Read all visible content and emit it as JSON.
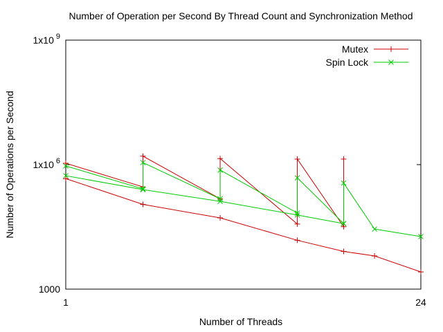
{
  "chart_data": {
    "type": "line",
    "title": "Number of Operation per Second By Thread Count and Synchronization Method",
    "x_label": "Number of Threads",
    "y_label": "Number of Operations per Second",
    "log_y": true,
    "legend": "top-right",
    "xlim": [
      1,
      24
    ],
    "xticks": [
      1,
      24
    ],
    "ylim": [
      1000,
      1000000000
    ],
    "yticks": [
      {
        "value": 1000,
        "label": "1000"
      },
      {
        "value": 1000000,
        "label": "1x10^6"
      },
      {
        "value": 1000000000,
        "label": "1x10^9"
      }
    ],
    "series": [
      {
        "name": "Mutex",
        "color": "#cc0000",
        "marker": "+",
        "x": [
          1,
          6,
          6,
          11,
          11,
          16,
          16,
          19,
          19,
          null,
          1,
          6,
          11,
          16,
          19,
          21,
          24
        ],
        "values": [
          1080000,
          290000,
          1600000,
          150000,
          1400000,
          37000,
          1360000,
          32000,
          1360000,
          null,
          460000,
          110000,
          52000,
          15000,
          8100,
          6300,
          2600
        ]
      },
      {
        "name": "Spin Lock",
        "color": "#00cc00",
        "marker": "x",
        "x": [
          1,
          6,
          6,
          11,
          11,
          16,
          16,
          19,
          19,
          21,
          24,
          null,
          1,
          6,
          11,
          16,
          19
        ],
        "values": [
          930000,
          260000,
          1120000,
          150000,
          740000,
          68000,
          480000,
          38000,
          360000,
          28000,
          18500,
          null,
          540000,
          250000,
          130000,
          61000,
          38000
        ]
      }
    ]
  }
}
